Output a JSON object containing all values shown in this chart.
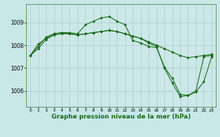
{
  "background_color": "#c8e8e8",
  "plot_bg_color": "#cce8e8",
  "grid_color": "#aacccc",
  "line_color": "#1a6b1a",
  "marker_color": "#1a6b1a",
  "xlabel": "Graphe pression niveau de la mer (hPa)",
  "xlabel_fontsize": 6.5,
  "x_ticks": [
    0,
    1,
    2,
    3,
    4,
    5,
    6,
    7,
    8,
    9,
    10,
    11,
    12,
    13,
    14,
    15,
    16,
    17,
    18,
    19,
    20,
    21,
    22,
    23
  ],
  "ylim": [
    1005.3,
    1009.8
  ],
  "yticks": [
    1006,
    1007,
    1008,
    1009
  ],
  "series": [
    [
      1007.55,
      1007.95,
      1008.35,
      1008.5,
      1008.55,
      1008.55,
      1008.5,
      1008.9,
      1009.05,
      1009.2,
      1009.25,
      1009.05,
      1008.9,
      1008.2,
      1008.1,
      1007.95,
      1007.9,
      1007.05,
      1006.55,
      1005.85,
      1005.8,
      1006.0,
      1007.5,
      1007.55
    ],
    [
      1007.55,
      1008.05,
      1008.3,
      1008.5,
      1008.55,
      1008.5,
      1008.45,
      1008.5,
      1008.55,
      1008.6,
      1008.65,
      1008.6,
      1008.5,
      1008.4,
      1008.3,
      1008.15,
      1008.0,
      1007.85,
      1007.7,
      1007.55,
      1007.45,
      1007.5,
      1007.55,
      1007.6
    ],
    [
      1007.55,
      1007.85,
      1008.25,
      1008.45,
      1008.5,
      1008.5,
      1008.45,
      1008.5,
      1008.55,
      1008.6,
      1008.65,
      1008.6,
      1008.5,
      1008.4,
      1008.3,
      1008.1,
      1007.95,
      1007.0,
      1006.35,
      1005.75,
      1005.8,
      1005.95,
      1006.4,
      1007.5
    ]
  ]
}
